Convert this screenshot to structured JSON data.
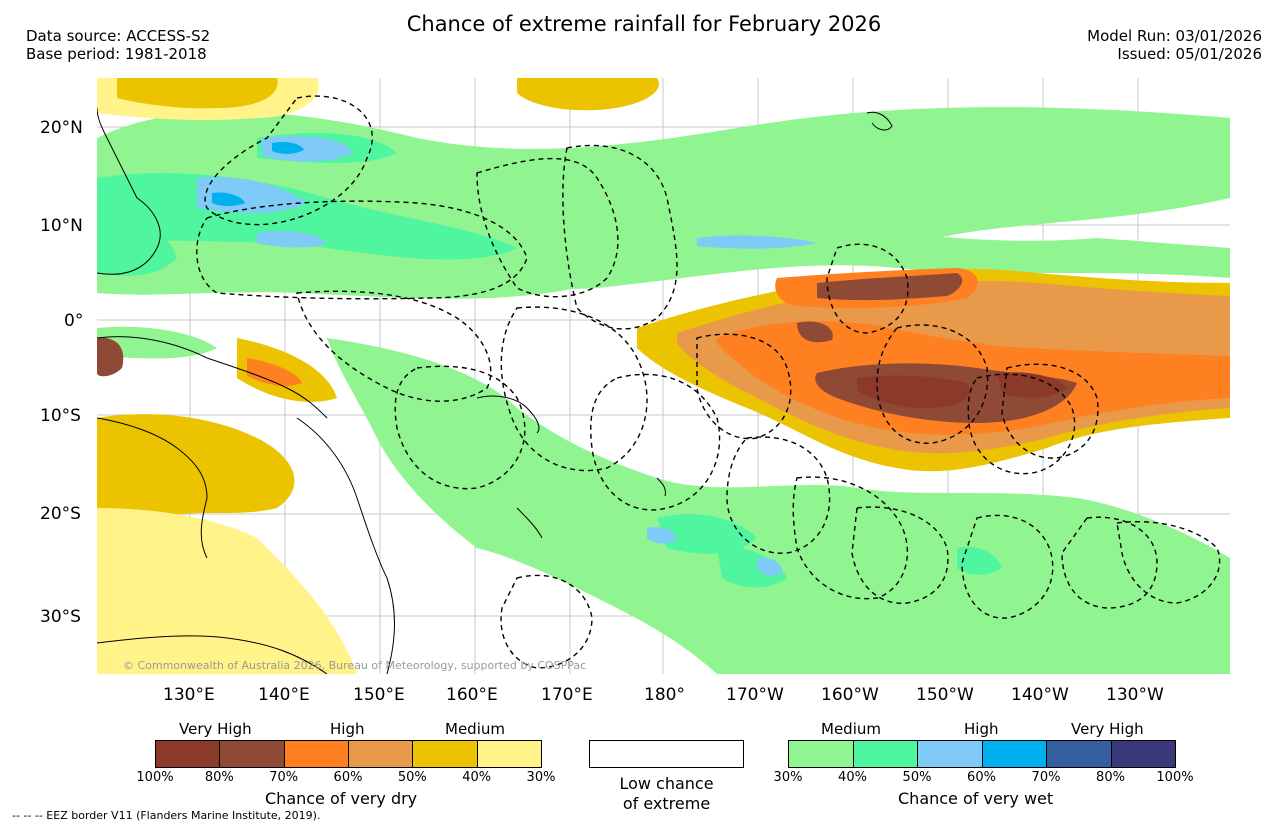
{
  "header": {
    "title": "Chance of extreme rainfall for February 2026",
    "data_source": "Data source: ACCESS-S2",
    "base_period": "Base period: 1981-2018",
    "model_run": "Model Run: 03/01/2026",
    "issued": "Issued: 05/01/2026"
  },
  "map": {
    "copyright": "© Commonwealth of Australia 2026, Bureau of Meteorology, supported by COSPPac",
    "lat_labels": [
      "20°N",
      "10°N",
      "0°",
      "10°S",
      "20°S",
      "30°S"
    ],
    "lon_labels": [
      "130°E",
      "140°E",
      "150°E",
      "160°E",
      "170°E",
      "180°",
      "170°W",
      "160°W",
      "150°W",
      "140°W",
      "130°W"
    ]
  },
  "legend": {
    "dry": {
      "categories": [
        "Very High",
        "High",
        "Medium"
      ],
      "colors": [
        "#8b3a2a",
        "#8e4a34",
        "#ff8020",
        "#e8994a",
        "#ecc300",
        "#fff38a"
      ],
      "ticks": [
        "100%",
        "80%",
        "70%",
        "60%",
        "50%",
        "40%",
        "30%"
      ],
      "label": "Chance of very dry"
    },
    "low": {
      "line1": "Low chance",
      "line2": "of extreme"
    },
    "wet": {
      "categories": [
        "Medium",
        "High",
        "Very High"
      ],
      "colors": [
        "#90f590",
        "#50f5a0",
        "#80caf8",
        "#00b0ef",
        "#355e9e",
        "#3a387a"
      ],
      "ticks": [
        "30%",
        "40%",
        "50%",
        "60%",
        "70%",
        "80%",
        "100%"
      ],
      "label": "Chance of very wet"
    }
  },
  "footer": {
    "eez_note": "--  --  -- EEZ border V11 (Flanders Marine Institute, 2019)."
  }
}
